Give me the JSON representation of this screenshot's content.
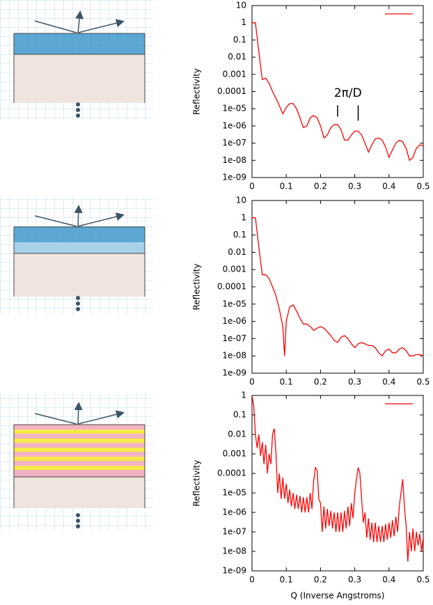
{
  "chart_data": [
    {
      "type": "line",
      "ylabel": "Reflectivity",
      "log_y": true,
      "legend": "upper right",
      "annotation": "2π/D",
      "ylim": [
        1e-09,
        10
      ],
      "yticks": [
        10,
        1,
        0.1,
        0.01,
        0.001,
        0.0001,
        {
          "value": 1e-05,
          "label": "1e-05"
        },
        {
          "value": 1e-06,
          "label": "1e-06"
        },
        {
          "value": 1e-07,
          "label": "1e-07"
        },
        {
          "value": 1e-08,
          "label": "1e-08"
        },
        {
          "value": 1e-09,
          "label": "1e-09"
        }
      ],
      "xlim": [
        0,
        0.5
      ],
      "xticks": [
        0,
        0.1,
        0.2,
        0.3,
        0.4,
        0.5
      ],
      "x": [
        0,
        0.01,
        0.02,
        0.03,
        0.04,
        0.05,
        0.06,
        0.07,
        0.08,
        0.09,
        0.1,
        0.11,
        0.12,
        0.13,
        0.14,
        0.15,
        0.16,
        0.17,
        0.18,
        0.19,
        0.2,
        0.21,
        0.22,
        0.23,
        0.24,
        0.25,
        0.26,
        0.27,
        0.28,
        0.29,
        0.3,
        0.31,
        0.32,
        0.33,
        0.34,
        0.35,
        0.36,
        0.37,
        0.38,
        0.39,
        0.4,
        0.41,
        0.42,
        0.43,
        0.44,
        0.45,
        0.46,
        0.47,
        0.48,
        0.49,
        0.5
      ],
      "series": [
        {
          "color": "#ff0000",
          "values": [
            1,
            1,
            0.02,
            0.0005,
            0.0006,
            0.0003,
            0.0001,
            4e-05,
            1.5e-05,
            5e-06,
            1.2e-05,
            2e-05,
            2e-05,
            1e-05,
            3e-06,
            8e-07,
            1e-06,
            3e-06,
            4e-06,
            3e-06,
            1e-06,
            2e-07,
            3e-07,
            8e-07,
            1.2e-06,
            1.2e-06,
            6e-07,
            1.5e-07,
            1.5e-07,
            3e-07,
            5e-07,
            5e-07,
            3e-07,
            1e-07,
            3e-08,
            8e-08,
            1.8e-07,
            2e-07,
            1.5e-07,
            6e-08,
            1.5e-08,
            4e-08,
            1e-07,
            1.5e-07,
            1.2e-07,
            5e-08,
            1e-08,
            1.5e-08,
            5e-08,
            8e-08,
            7e-08
          ]
        }
      ]
    },
    {
      "type": "line",
      "ylabel": "Reflectivity",
      "log_y": true,
      "ylim": [
        1e-09,
        10
      ],
      "yticks": [
        10,
        1,
        0.1,
        0.01,
        0.001,
        0.0001,
        {
          "value": 1e-05,
          "label": "1e-05"
        },
        {
          "value": 1e-06,
          "label": "1e-06"
        },
        {
          "value": 1e-07,
          "label": "1e-07"
        },
        {
          "value": 1e-08,
          "label": "1e-08"
        },
        {
          "value": 1e-09,
          "label": "1e-09"
        }
      ],
      "xlim": [
        0,
        0.5
      ],
      "xticks": [
        0,
        0.1,
        0.2,
        0.3,
        0.4,
        0.5
      ],
      "x": [
        0,
        0.01,
        0.02,
        0.03,
        0.04,
        0.05,
        0.06,
        0.07,
        0.08,
        0.09,
        0.095,
        0.1,
        0.11,
        0.12,
        0.13,
        0.14,
        0.15,
        0.16,
        0.17,
        0.18,
        0.19,
        0.2,
        0.21,
        0.22,
        0.23,
        0.24,
        0.25,
        0.26,
        0.27,
        0.28,
        0.29,
        0.3,
        0.31,
        0.32,
        0.33,
        0.34,
        0.35,
        0.36,
        0.37,
        0.38,
        0.39,
        0.4,
        0.41,
        0.42,
        0.43,
        0.44,
        0.45,
        0.46,
        0.47,
        0.48,
        0.49,
        0.5
      ],
      "series": [
        {
          "color": "#ff0000",
          "values": [
            1,
            1,
            0.02,
            0.0005,
            0.0005,
            0.0003,
            0.0001,
            3e-05,
            5e-06,
            5e-07,
            1e-08,
            1e-06,
            7e-06,
            9e-06,
            4e-06,
            1.5e-06,
            7e-07,
            7e-07,
            5e-07,
            3e-07,
            4e-07,
            5e-07,
            4e-07,
            2.5e-07,
            1.5e-07,
            8e-08,
            6e-08,
            1.2e-07,
            1.5e-07,
            1e-07,
            5e-08,
            3e-08,
            5e-08,
            6e-08,
            5e-08,
            4e-08,
            4e-08,
            3e-08,
            1.5e-08,
            1e-08,
            2e-08,
            2.5e-08,
            1.5e-08,
            1.5e-08,
            2.5e-08,
            3e-08,
            2e-08,
            1e-08,
            1e-08,
            1.2e-08,
            1.2e-08,
            1e-08
          ]
        }
      ]
    },
    {
      "type": "line",
      "ylabel": "Reflectivity",
      "xlabel": "Q (Inverse Angstroms)",
      "log_y": true,
      "legend": "upper right",
      "ylim": [
        1e-09,
        1
      ],
      "yticks": [
        1,
        0.1,
        0.01,
        0.001,
        0.0001,
        {
          "value": 1e-05,
          "label": "1e-05"
        },
        {
          "value": 1e-06,
          "label": "1e-06"
        },
        {
          "value": 1e-07,
          "label": "1e-07"
        },
        {
          "value": 1e-08,
          "label": "1e-08"
        },
        {
          "value": 1e-09,
          "label": "1e-09"
        }
      ],
      "xlim": [
        0,
        0.5
      ],
      "xticks": [
        0,
        0.1,
        0.2,
        0.3,
        0.4,
        0.5
      ],
      "x": [
        0,
        0.005,
        0.01,
        0.015,
        0.02,
        0.025,
        0.03,
        0.035,
        0.04,
        0.045,
        0.05,
        0.055,
        0.06,
        0.065,
        0.07,
        0.075,
        0.08,
        0.085,
        0.09,
        0.095,
        0.1,
        0.105,
        0.11,
        0.115,
        0.12,
        0.125,
        0.13,
        0.135,
        0.14,
        0.145,
        0.15,
        0.155,
        0.16,
        0.165,
        0.17,
        0.175,
        0.18,
        0.185,
        0.19,
        0.195,
        0.2,
        0.205,
        0.21,
        0.215,
        0.22,
        0.225,
        0.23,
        0.235,
        0.24,
        0.245,
        0.25,
        0.255,
        0.26,
        0.265,
        0.27,
        0.275,
        0.28,
        0.285,
        0.29,
        0.295,
        0.3,
        0.305,
        0.31,
        0.315,
        0.32,
        0.325,
        0.33,
        0.335,
        0.34,
        0.345,
        0.35,
        0.355,
        0.36,
        0.365,
        0.37,
        0.375,
        0.38,
        0.385,
        0.39,
        0.395,
        0.4,
        0.405,
        0.41,
        0.415,
        0.42,
        0.425,
        0.43,
        0.435,
        0.44,
        0.445,
        0.45,
        0.455,
        0.46,
        0.465,
        0.47,
        0.475,
        0.48,
        0.485,
        0.49,
        0.495,
        0.5
      ],
      "series": [
        {
          "color": "#ff0000",
          "values": [
            1,
            0.3,
            0.01,
            0.002,
            0.01,
            0.0008,
            0.004,
            0.0003,
            0.003,
            0.0001,
            0.001,
            0.0003,
            0.01,
            0.02,
            0.001,
            1e-05,
            0.0001,
            5e-06,
            6e-05,
            5e-06,
            3e-05,
            3e-06,
            1.5e-05,
            2e-06,
            1e-05,
            1.5e-06,
            8e-06,
            1.5e-06,
            7e-06,
            1e-06,
            6e-06,
            1e-06,
            6e-06,
            1e-06,
            1e-05,
            1.5e-06,
            4e-05,
            0.0002,
            0.00015,
            5e-06,
            3e-06,
            1e-07,
            2e-06,
            1.5e-07,
            1.5e-06,
            2e-07,
            1.2e-06,
            1.5e-07,
            1e-06,
            1e-07,
            1e-06,
            1e-07,
            1e-06,
            1e-07,
            1.2e-06,
            1.5e-07,
            2e-06,
            2e-07,
            3e-06,
            5e-07,
            1e-05,
            5e-05,
            0.0002,
            0.0001,
            5e-06,
            3e-07,
            1e-06,
            5e-08,
            5e-07,
            4e-08,
            3e-07,
            3e-08,
            3e-07,
            3e-08,
            2e-07,
            3e-08,
            2e-07,
            3e-08,
            2.5e-07,
            4e-08,
            3e-07,
            5e-08,
            4e-07,
            6e-08,
            6e-07,
            1e-07,
            2e-06,
            1e-05,
            5e-05,
            2e-06,
            2e-07,
            3e-09,
            1e-07,
            1e-08,
            1.5e-07,
            1e-08,
            1e-07,
            2e-08,
            8e-08,
            1e-08,
            5e-08
          ]
        }
      ]
    }
  ]
}
